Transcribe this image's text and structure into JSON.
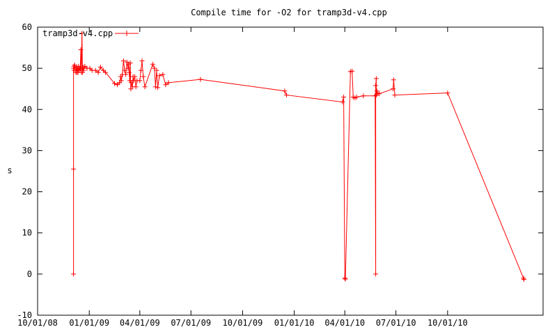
{
  "chart_data": {
    "type": "line",
    "title": "Compile time for -O2 for tramp3d-v4.cpp",
    "xlabel": "",
    "ylabel": "s",
    "x_ticks": [
      "10/01/08",
      "01/01/09",
      "04/01/09",
      "07/01/09",
      "10/01/09",
      "01/01/10",
      "04/01/10",
      "07/01/10",
      "10/01/10"
    ],
    "xlim": [
      "2008-10-01",
      "2011-03-20"
    ],
    "ylim": [
      -10,
      60
    ],
    "y_ticks": [
      -10,
      0,
      10,
      20,
      30,
      40,
      50,
      60
    ],
    "grid": false,
    "legend_position": "top-left",
    "series": [
      {
        "name": "tramp3d-v4.cpp",
        "color": "#ff0000",
        "points": [
          [
            "2008-12-04",
            0
          ],
          [
            "2008-12-04",
            25.5
          ],
          [
            "2008-12-04",
            50
          ],
          [
            "2008-12-05",
            50.5
          ],
          [
            "2008-12-05",
            49.5
          ],
          [
            "2008-12-06",
            50.8
          ],
          [
            "2008-12-07",
            50
          ],
          [
            "2008-12-08",
            49
          ],
          [
            "2008-12-09",
            50.3
          ],
          [
            "2008-12-10",
            49
          ],
          [
            "2008-12-11",
            50
          ],
          [
            "2008-12-12",
            49
          ],
          [
            "2008-12-13",
            50.5
          ],
          [
            "2008-12-14",
            49.5
          ],
          [
            "2008-12-15",
            50
          ],
          [
            "2008-12-16",
            49.8
          ],
          [
            "2008-12-17",
            54.5
          ],
          [
            "2008-12-18",
            49
          ],
          [
            "2008-12-19",
            58.5
          ],
          [
            "2008-12-20",
            49
          ],
          [
            "2008-12-21",
            50.3
          ],
          [
            "2008-12-22",
            49.5
          ],
          [
            "2008-12-24",
            50.5
          ],
          [
            "2008-12-28",
            50
          ],
          [
            "2009-01-02",
            50
          ],
          [
            "2009-01-06",
            49.5
          ],
          [
            "2009-01-12",
            49.5
          ],
          [
            "2009-01-17",
            49
          ],
          [
            "2009-01-21",
            50.3
          ],
          [
            "2009-01-26",
            49.5
          ],
          [
            "2009-01-30",
            49
          ],
          [
            "2009-02-15",
            46.3
          ],
          [
            "2009-02-20",
            46
          ],
          [
            "2009-02-24",
            46.5
          ],
          [
            "2009-02-26",
            48
          ],
          [
            "2009-02-27",
            47
          ],
          [
            "2009-03-01",
            48.5
          ],
          [
            "2009-03-03",
            51.8
          ],
          [
            "2009-03-05",
            49.5
          ],
          [
            "2009-03-07",
            48.5
          ],
          [
            "2009-03-09",
            51.5
          ],
          [
            "2009-03-11",
            50
          ],
          [
            "2009-03-12",
            51
          ],
          [
            "2009-03-13",
            49
          ],
          [
            "2009-03-14",
            47
          ],
          [
            "2009-03-15",
            51.3
          ],
          [
            "2009-03-16",
            45
          ],
          [
            "2009-03-17",
            46.5
          ],
          [
            "2009-03-19",
            45.5
          ],
          [
            "2009-03-20",
            48
          ],
          [
            "2009-03-21",
            47
          ],
          [
            "2009-03-23",
            48
          ],
          [
            "2009-03-25",
            45.5
          ],
          [
            "2009-03-27",
            47
          ],
          [
            "2009-04-01",
            47
          ],
          [
            "2009-04-03",
            49.5
          ],
          [
            "2009-04-05",
            51.8
          ],
          [
            "2009-04-07",
            48
          ],
          [
            "2009-04-10",
            45.5
          ],
          [
            "2009-04-24",
            51
          ],
          [
            "2009-04-27",
            50
          ],
          [
            "2009-04-29",
            45.5
          ],
          [
            "2009-05-01",
            49.5
          ],
          [
            "2009-05-03",
            45.3
          ],
          [
            "2009-05-06",
            48.2
          ],
          [
            "2009-05-12",
            48.5
          ],
          [
            "2009-05-17",
            46
          ],
          [
            "2009-05-22",
            46.5
          ],
          [
            "2009-07-18",
            47.3
          ],
          [
            "2009-12-15",
            44.5
          ],
          [
            "2009-12-18",
            43.5
          ],
          [
            "2010-03-28",
            41.8
          ],
          [
            "2010-03-30",
            43
          ],
          [
            "2010-04-01",
            -1
          ],
          [
            "2010-04-02",
            -1.2
          ],
          [
            "2010-04-11",
            49.2
          ],
          [
            "2010-04-14",
            49.3
          ],
          [
            "2010-04-16",
            43
          ],
          [
            "2010-04-19",
            42.8
          ],
          [
            "2010-04-22",
            43
          ],
          [
            "2010-05-04",
            43.3
          ],
          [
            "2010-05-25",
            43.3
          ],
          [
            "2010-05-26",
            0
          ],
          [
            "2010-05-26",
            45.8
          ],
          [
            "2010-05-27",
            47.5
          ],
          [
            "2010-05-27",
            43.5
          ],
          [
            "2010-05-28",
            44.5
          ],
          [
            "2010-05-29",
            44
          ],
          [
            "2010-06-01",
            43.8
          ],
          [
            "2010-06-26",
            45
          ],
          [
            "2010-06-27",
            47.2
          ],
          [
            "2010-06-29",
            43.5
          ],
          [
            "2010-10-01",
            44
          ],
          [
            "2011-02-13",
            -1
          ],
          [
            "2011-02-14",
            -1.3
          ]
        ]
      }
    ]
  }
}
